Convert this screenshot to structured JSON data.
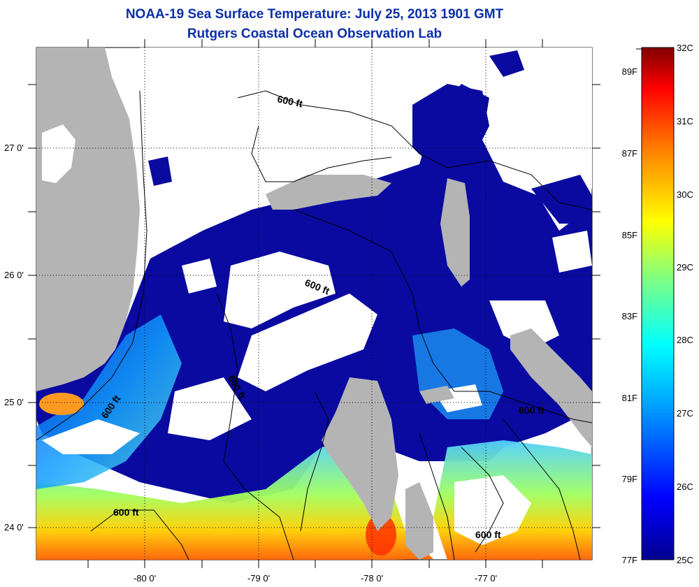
{
  "header": {
    "title": "NOAA-19 Sea Surface Temperature:  July 25, 2013 1901 GMT",
    "subtitle": "Rutgers Coastal Ocean Observation Lab"
  },
  "map": {
    "lat_labels": [
      "27 0'",
      "26 0'",
      "25 0'",
      "24 0'"
    ],
    "lon_labels": [
      "-80 0'",
      "-79 0'",
      "-78 0'",
      "-77 0'"
    ],
    "contour_labels": [
      "600 ft",
      "600 ft",
      "600 ft",
      "600 ft",
      "600 ft",
      "600 ft"
    ],
    "colors": {
      "land": "#b4b4b4",
      "no_data": "#ffffff",
      "deep_blue": "#0a0aa0"
    }
  },
  "colorbar": {
    "celsius_labels": [
      "32C",
      "31C",
      "30C",
      "29C",
      "28C",
      "27C",
      "26C",
      "25C"
    ],
    "fahrenheit_labels": [
      "89F",
      "87F",
      "85F",
      "83F",
      "81F",
      "79F",
      "77F"
    ],
    "celsius_range": [
      25,
      32
    ],
    "fahrenheit_range": [
      77,
      89.6
    ]
  }
}
